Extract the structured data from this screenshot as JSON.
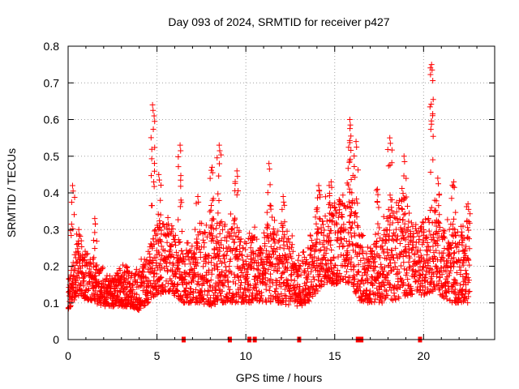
{
  "chart_data": {
    "type": "scatter",
    "title": "Day 093 of 2024, SRMTID for receiver p427",
    "xlabel": "GPS time / hours",
    "ylabel": "SRMTID / TECUs",
    "xlim": [
      0,
      24
    ],
    "ylim": [
      0,
      0.8
    ],
    "xticks": [
      0,
      5,
      10,
      15,
      20
    ],
    "xtick_labels": [
      "0",
      "5",
      "10",
      "15",
      "20"
    ],
    "yticks": [
      0,
      0.1,
      0.2,
      0.3,
      0.4,
      0.5,
      0.6,
      0.7,
      0.8
    ],
    "ytick_labels": [
      "0",
      "0.1",
      "0.2",
      "0.3",
      "0.4",
      "0.5",
      "0.6",
      "0.7",
      "0.8"
    ],
    "grid": true,
    "marker": "+",
    "color": "#ff0000",
    "series": [
      {
        "name": "SRMTID",
        "description": "dense scatter of ~2000 epochs",
        "baseline_profile": {
          "x": [
            0,
            0.5,
            1,
            1.5,
            2,
            2.5,
            3,
            3.5,
            4,
            4.5,
            5,
            5.5,
            6,
            6.5,
            7,
            7.5,
            8,
            8.5,
            9,
            9.5,
            10,
            10.5,
            11,
            11.5,
            12,
            12.5,
            13,
            13.5,
            14,
            14.5,
            15,
            15.5,
            16,
            16.5,
            17,
            17.5,
            18,
            18.5,
            19,
            19.5,
            20,
            20.5,
            21,
            21.5,
            22,
            22.6
          ],
          "typical_low": [
            0.08,
            0.12,
            0.11,
            0.1,
            0.09,
            0.09,
            0.09,
            0.09,
            0.08,
            0.1,
            0.12,
            0.13,
            0.12,
            0.1,
            0.1,
            0.1,
            0.09,
            0.1,
            0.1,
            0.1,
            0.1,
            0.1,
            0.1,
            0.1,
            0.1,
            0.09,
            0.09,
            0.1,
            0.13,
            0.15,
            0.15,
            0.16,
            0.14,
            0.1,
            0.1,
            0.1,
            0.1,
            0.11,
            0.12,
            0.12,
            0.12,
            0.13,
            0.12,
            0.1,
            0.1,
            0.1
          ],
          "typical_high": [
            0.15,
            0.27,
            0.24,
            0.22,
            0.18,
            0.17,
            0.2,
            0.18,
            0.2,
            0.24,
            0.33,
            0.34,
            0.31,
            0.25,
            0.27,
            0.3,
            0.34,
            0.3,
            0.32,
            0.3,
            0.28,
            0.3,
            0.3,
            0.32,
            0.3,
            0.27,
            0.22,
            0.24,
            0.34,
            0.38,
            0.36,
            0.4,
            0.42,
            0.28,
            0.26,
            0.28,
            0.34,
            0.36,
            0.38,
            0.32,
            0.32,
            0.38,
            0.34,
            0.3,
            0.32,
            0.32
          ]
        },
        "peaks": [
          {
            "x": 0.25,
            "ymax": 0.42,
            "n": 8
          },
          {
            "x": 0.6,
            "ymax": 0.3,
            "n": 6
          },
          {
            "x": 1.5,
            "ymax": 0.33,
            "n": 6
          },
          {
            "x": 4.75,
            "ymax": 0.64,
            "n": 14
          },
          {
            "x": 5.1,
            "ymax": 0.45,
            "n": 8
          },
          {
            "x": 6.3,
            "ymax": 0.53,
            "n": 10
          },
          {
            "x": 7.3,
            "ymax": 0.39,
            "n": 6
          },
          {
            "x": 8.1,
            "ymax": 0.47,
            "n": 8
          },
          {
            "x": 8.5,
            "ymax": 0.53,
            "n": 10
          },
          {
            "x": 9.5,
            "ymax": 0.46,
            "n": 8
          },
          {
            "x": 11.3,
            "ymax": 0.48,
            "n": 8
          },
          {
            "x": 12.1,
            "ymax": 0.39,
            "n": 6
          },
          {
            "x": 14.1,
            "ymax": 0.42,
            "n": 8
          },
          {
            "x": 14.8,
            "ymax": 0.43,
            "n": 8
          },
          {
            "x": 15.85,
            "ymax": 0.6,
            "n": 14
          },
          {
            "x": 16.2,
            "ymax": 0.54,
            "n": 10
          },
          {
            "x": 17.4,
            "ymax": 0.41,
            "n": 6
          },
          {
            "x": 18.1,
            "ymax": 0.55,
            "n": 10
          },
          {
            "x": 18.9,
            "ymax": 0.5,
            "n": 10
          },
          {
            "x": 20.45,
            "ymax": 0.75,
            "n": 14
          },
          {
            "x": 20.8,
            "ymax": 0.44,
            "n": 8
          },
          {
            "x": 21.7,
            "ymax": 0.43,
            "n": 8
          },
          {
            "x": 22.5,
            "ymax": 0.37,
            "n": 6
          }
        ],
        "zero_marks_x": [
          6.5,
          9.1,
          10.2,
          10.5,
          13.0,
          16.3,
          16.5,
          19.8
        ]
      }
    ]
  }
}
